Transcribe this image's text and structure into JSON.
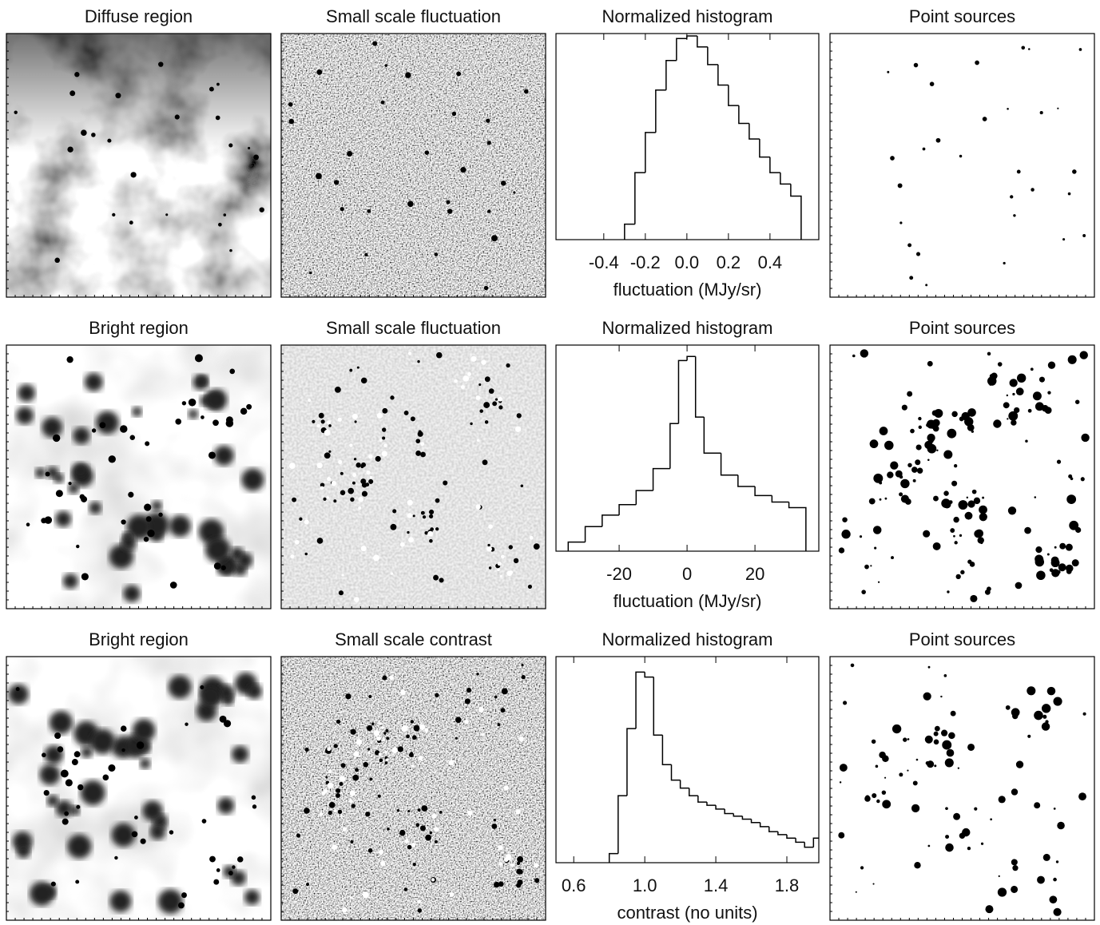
{
  "rows": [
    {
      "image_titles": [
        "Diffuse region",
        "Small scale fluctuation",
        "Point sources"
      ]
    },
    {
      "image_titles": [
        "Bright region",
        "Small scale fluctuation",
        "Point sources"
      ]
    },
    {
      "image_titles": [
        "Bright region",
        "Small scale contrast",
        "Point sources"
      ]
    }
  ],
  "chart_data": [
    {
      "type": "histogram",
      "title": "Normalized histogram",
      "x_label": "fluctuation (MJy/sr)",
      "bins": [
        -0.3,
        -0.25,
        -0.2,
        -0.15,
        -0.1,
        -0.05,
        0,
        0.05,
        0.1,
        0.15,
        0.2,
        0.25,
        0.3,
        0.35,
        0.4,
        0.45,
        0.5,
        0.55
      ],
      "counts": [
        0.0002,
        0.002,
        0.012,
        0.08,
        0.3,
        0.8,
        0.9,
        0.55,
        0.25,
        0.1,
        0.04,
        0.018,
        0.009,
        0.004,
        0.002,
        0.0012,
        0.0007
      ],
      "xlim": [
        -0.63,
        0.635
      ],
      "xticks": [
        -0.4,
        -0.2,
        {
          "value": 0,
          "label": "0.0"
        },
        0.2,
        0.4
      ],
      "ylim": [
        0.0001,
        1
      ],
      "log_y": true,
      "color": "#000000"
    },
    {
      "type": "histogram",
      "title": "Normalized histogram",
      "x_label": "fluctuation (MJy/sr)",
      "bins": [
        -35,
        -30,
        -25,
        -20,
        -15,
        -10,
        -5,
        -2.5,
        0,
        2.5,
        5,
        10,
        15,
        20,
        25,
        30,
        35
      ],
      "counts": [
        0.00015,
        0.0003,
        0.0005,
        0.0008,
        0.0015,
        0.004,
        0.03,
        0.5,
        0.6,
        0.04,
        0.008,
        0.003,
        0.0018,
        0.0012,
        0.0009,
        0.0007
      ],
      "xlim": [
        -38.6,
        38.8
      ],
      "xticks": [
        -20,
        0,
        20
      ],
      "ylim": [
        0.0001,
        1
      ],
      "log_y": true,
      "color": "#000000"
    },
    {
      "type": "histogram",
      "title": "Normalized histogram",
      "x_label": "contrast (no units)",
      "bins": [
        0.8,
        0.85,
        0.9,
        0.95,
        1.0,
        1.05,
        1.1,
        1.15,
        1.2,
        1.25,
        1.3,
        1.35,
        1.4,
        1.45,
        1.5,
        1.55,
        1.6,
        1.65,
        1.7,
        1.75,
        1.8,
        1.85,
        1.9,
        1.95,
        2.0
      ],
      "counts": [
        0.00015,
        0.002,
        0.04,
        0.5,
        0.4,
        0.03,
        0.008,
        0.004,
        0.0028,
        0.002,
        0.0015,
        0.0013,
        0.0011,
        0.0009,
        0.0008,
        0.0007,
        0.0006,
        0.0005,
        0.0004,
        0.00035,
        0.0003,
        0.00025,
        0.0002,
        0.0003
      ],
      "xlim": [
        0.5,
        1.98
      ],
      "xticks": [
        0.6,
        {
          "value": 1,
          "label": "1.0"
        },
        1.4,
        1.8
      ],
      "ylim": [
        0.0001,
        1
      ],
      "log_y": true,
      "color": "#000000"
    }
  ]
}
